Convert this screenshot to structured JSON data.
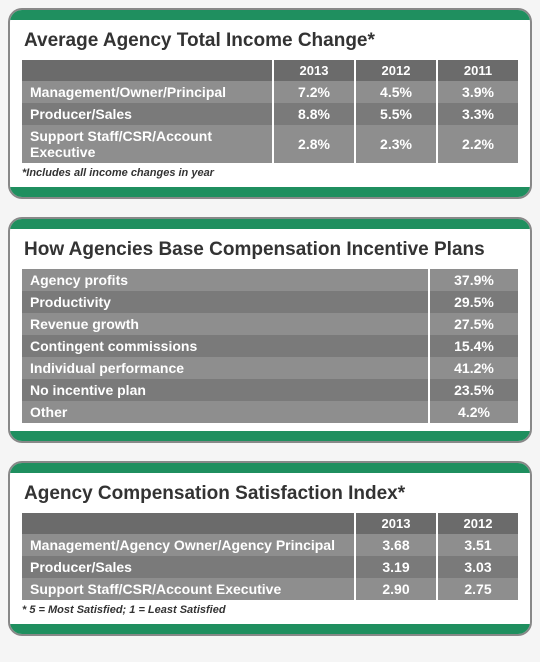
{
  "colors": {
    "green": "#1f8f5f",
    "header_row": "#6b6b6b",
    "row_light": "#8e8e8e",
    "row_dark": "#7a7a7a",
    "border": "#888888",
    "text_title": "#333333",
    "cell_text": "#ffffff",
    "background": "#f5f5f5"
  },
  "panel1": {
    "title": "Average Agency Total Income Change*",
    "years": [
      "2013",
      "2012",
      "2011"
    ],
    "rows": [
      {
        "label": "Management/Owner/Principal",
        "vals": [
          "7.2%",
          "4.5%",
          "3.9%"
        ]
      },
      {
        "label": "Producer/Sales",
        "vals": [
          "8.8%",
          "5.5%",
          "3.3%"
        ]
      },
      {
        "label": "Support Staff/CSR/Account Executive",
        "vals": [
          "2.8%",
          "2.3%",
          "2.2%"
        ]
      }
    ],
    "footnote": "*Includes all income changes in year"
  },
  "panel2": {
    "title": "How Agencies Base Compensation Incentive Plans",
    "rows": [
      {
        "label": "Agency profits",
        "val": "37.9%"
      },
      {
        "label": "Productivity",
        "val": "29.5%"
      },
      {
        "label": "Revenue growth",
        "val": "27.5%"
      },
      {
        "label": "Contingent commissions",
        "val": "15.4%"
      },
      {
        "label": "Individual performance",
        "val": "41.2%"
      },
      {
        "label": "No incentive plan",
        "val": "23.5%"
      },
      {
        "label": "Other",
        "val": "4.2%"
      }
    ]
  },
  "panel3": {
    "title": "Agency Compensation Satisfaction Index*",
    "years": [
      "2013",
      "2012"
    ],
    "rows": [
      {
        "label": "Management/Agency Owner/Agency Principal",
        "vals": [
          "3.68",
          "3.51"
        ]
      },
      {
        "label": "Producer/Sales",
        "vals": [
          "3.19",
          "3.03"
        ]
      },
      {
        "label": "Support Staff/CSR/Account Executive",
        "vals": [
          "2.90",
          "2.75"
        ]
      }
    ],
    "footnote": "* 5 = Most Satisfied; 1 = Least Satisfied"
  }
}
